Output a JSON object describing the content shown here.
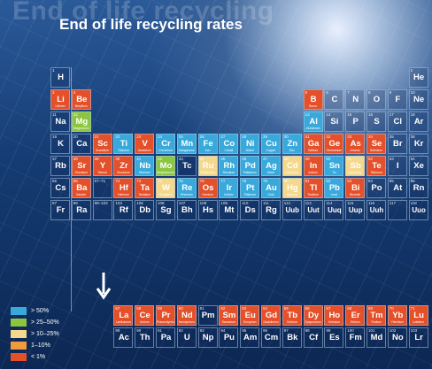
{
  "background_title": "End of life recycling",
  "title": "End of life recycling rates",
  "colors": {
    "none": "transparent",
    "below_1": "#e4502a",
    "1_10": "#f39a3c",
    "10_25": "#f4d88c",
    "25_50": "#8cc63f",
    "above_50": "#39a9dc"
  },
  "legend": [
    {
      "label": "> 50%",
      "cat": 5
    },
    {
      "label": "> 25–50%",
      "cat": 4
    },
    {
      "label": "> 10–25%",
      "cat": 3
    },
    {
      "label": "1–10%",
      "cat": 2
    },
    {
      "label": "< 1%",
      "cat": 1
    }
  ],
  "lanthanide_marker": "57–71",
  "actinide_marker": "89–103",
  "elements": [
    {
      "n": "1",
      "s": "H",
      "name": "",
      "r": 0,
      "c": 0,
      "cat": 0
    },
    {
      "n": "2",
      "s": "He",
      "name": "",
      "r": 0,
      "c": 17,
      "cat": 0
    },
    {
      "n": "3",
      "s": "Li",
      "name": "Lithium",
      "r": 1,
      "c": 0,
      "cat": 1
    },
    {
      "n": "4",
      "s": "Be",
      "name": "Beryllium",
      "r": 1,
      "c": 1,
      "cat": 1
    },
    {
      "n": "5",
      "s": "B",
      "name": "Boron",
      "r": 1,
      "c": 12,
      "cat": 1
    },
    {
      "n": "6",
      "s": "C",
      "name": "",
      "r": 1,
      "c": 13,
      "cat": 0
    },
    {
      "n": "7",
      "s": "N",
      "name": "",
      "r": 1,
      "c": 14,
      "cat": 0
    },
    {
      "n": "8",
      "s": "O",
      "name": "",
      "r": 1,
      "c": 15,
      "cat": 0
    },
    {
      "n": "9",
      "s": "F",
      "name": "",
      "r": 1,
      "c": 16,
      "cat": 0
    },
    {
      "n": "10",
      "s": "Ne",
      "name": "",
      "r": 1,
      "c": 17,
      "cat": 0
    },
    {
      "n": "11",
      "s": "Na",
      "name": "",
      "r": 2,
      "c": 0,
      "cat": 0
    },
    {
      "n": "12",
      "s": "Mg",
      "name": "Magnesium",
      "r": 2,
      "c": 1,
      "cat": 4
    },
    {
      "n": "13",
      "s": "Al",
      "name": "Aluminium",
      "r": 2,
      "c": 12,
      "cat": 5
    },
    {
      "n": "14",
      "s": "Si",
      "name": "",
      "r": 2,
      "c": 13,
      "cat": 0
    },
    {
      "n": "15",
      "s": "P",
      "name": "",
      "r": 2,
      "c": 14,
      "cat": 0
    },
    {
      "n": "16",
      "s": "S",
      "name": "",
      "r": 2,
      "c": 15,
      "cat": 0
    },
    {
      "n": "17",
      "s": "Cl",
      "name": "",
      "r": 2,
      "c": 16,
      "cat": 0
    },
    {
      "n": "18",
      "s": "Ar",
      "name": "",
      "r": 2,
      "c": 17,
      "cat": 0
    },
    {
      "n": "19",
      "s": "K",
      "name": "",
      "r": 3,
      "c": 0,
      "cat": 0
    },
    {
      "n": "20",
      "s": "Ca",
      "name": "",
      "r": 3,
      "c": 1,
      "cat": 0
    },
    {
      "n": "21",
      "s": "Sc",
      "name": "Scandium",
      "r": 3,
      "c": 2,
      "cat": 1
    },
    {
      "n": "22",
      "s": "Ti",
      "name": "Titanium",
      "r": 3,
      "c": 3,
      "cat": 5
    },
    {
      "n": "23",
      "s": "V",
      "name": "Vanadium",
      "r": 3,
      "c": 4,
      "cat": 1
    },
    {
      "n": "24",
      "s": "Cr",
      "name": "Chromium",
      "r": 3,
      "c": 5,
      "cat": 5
    },
    {
      "n": "25",
      "s": "Mn",
      "name": "Manganese",
      "r": 3,
      "c": 6,
      "cat": 5
    },
    {
      "n": "26",
      "s": "Fe",
      "name": "Iron",
      "r": 3,
      "c": 7,
      "cat": 5
    },
    {
      "n": "27",
      "s": "Co",
      "name": "Cobalt",
      "r": 3,
      "c": 8,
      "cat": 5
    },
    {
      "n": "28",
      "s": "Ni",
      "name": "Nickel",
      "r": 3,
      "c": 9,
      "cat": 5
    },
    {
      "n": "29",
      "s": "Cu",
      "name": "Copper",
      "r": 3,
      "c": 10,
      "cat": 5
    },
    {
      "n": "30",
      "s": "Zn",
      "name": "Zinc",
      "r": 3,
      "c": 11,
      "cat": 5
    },
    {
      "n": "31",
      "s": "Ga",
      "name": "Gallium",
      "r": 3,
      "c": 12,
      "cat": 1
    },
    {
      "n": "32",
      "s": "Ge",
      "name": "Germanium",
      "r": 3,
      "c": 13,
      "cat": 1
    },
    {
      "n": "33",
      "s": "As",
      "name": "Arsenic",
      "r": 3,
      "c": 14,
      "cat": 1
    },
    {
      "n": "34",
      "s": "Se",
      "name": "Selenium",
      "r": 3,
      "c": 15,
      "cat": 1
    },
    {
      "n": "35",
      "s": "Br",
      "name": "",
      "r": 3,
      "c": 16,
      "cat": 0
    },
    {
      "n": "36",
      "s": "Kr",
      "name": "",
      "r": 3,
      "c": 17,
      "cat": 0
    },
    {
      "n": "37",
      "s": "Rb",
      "name": "",
      "r": 4,
      "c": 0,
      "cat": 0
    },
    {
      "n": "38",
      "s": "Sr",
      "name": "Strontium",
      "r": 4,
      "c": 1,
      "cat": 1
    },
    {
      "n": "39",
      "s": "Y",
      "name": "Yttrium",
      "r": 4,
      "c": 2,
      "cat": 1
    },
    {
      "n": "40",
      "s": "Zr",
      "name": "Zirconium",
      "r": 4,
      "c": 3,
      "cat": 1
    },
    {
      "n": "41",
      "s": "Nb",
      "name": "Niobium",
      "r": 4,
      "c": 4,
      "cat": 5
    },
    {
      "n": "42",
      "s": "Mo",
      "name": "Molybdenum",
      "r": 4,
      "c": 5,
      "cat": 4
    },
    {
      "n": "43",
      "s": "Tc",
      "name": "",
      "r": 4,
      "c": 6,
      "cat": 0
    },
    {
      "n": "44",
      "s": "Ru",
      "name": "Ruthenium",
      "r": 4,
      "c": 7,
      "cat": 3
    },
    {
      "n": "45",
      "s": "Rh",
      "name": "Rhodium",
      "r": 4,
      "c": 8,
      "cat": 5
    },
    {
      "n": "46",
      "s": "Pd",
      "name": "Palladium",
      "r": 4,
      "c": 9,
      "cat": 5
    },
    {
      "n": "47",
      "s": "Ag",
      "name": "Silver",
      "r": 4,
      "c": 10,
      "cat": 5
    },
    {
      "n": "48",
      "s": "Cd",
      "name": "Cadmium",
      "r": 4,
      "c": 11,
      "cat": 3
    },
    {
      "n": "49",
      "s": "In",
      "name": "Indium",
      "r": 4,
      "c": 12,
      "cat": 1
    },
    {
      "n": "50",
      "s": "Sn",
      "name": "Tin",
      "r": 4,
      "c": 13,
      "cat": 5
    },
    {
      "n": "51",
      "s": "Sb",
      "name": "Antimony",
      "r": 4,
      "c": 14,
      "cat": 3
    },
    {
      "n": "52",
      "s": "Te",
      "name": "Tellurium",
      "r": 4,
      "c": 15,
      "cat": 1
    },
    {
      "n": "53",
      "s": "I",
      "name": "",
      "r": 4,
      "c": 16,
      "cat": 0
    },
    {
      "n": "54",
      "s": "Xe",
      "name": "",
      "r": 4,
      "c": 17,
      "cat": 0
    },
    {
      "n": "55",
      "s": "Cs",
      "name": "",
      "r": 5,
      "c": 0,
      "cat": 0
    },
    {
      "n": "56",
      "s": "Ba",
      "name": "Barium",
      "r": 5,
      "c": 1,
      "cat": 1
    },
    {
      "n": "72",
      "s": "Hf",
      "name": "Hafnium",
      "r": 5,
      "c": 3,
      "cat": 1
    },
    {
      "n": "73",
      "s": "Ta",
      "name": "Tantalum",
      "r": 5,
      "c": 4,
      "cat": 1
    },
    {
      "n": "74",
      "s": "W",
      "name": "Tungsten",
      "r": 5,
      "c": 5,
      "cat": 3
    },
    {
      "n": "75",
      "s": "Re",
      "name": "Rhenium",
      "r": 5,
      "c": 6,
      "cat": 5
    },
    {
      "n": "76",
      "s": "Os",
      "name": "Osmium",
      "r": 5,
      "c": 7,
      "cat": 1
    },
    {
      "n": "77",
      "s": "Ir",
      "name": "Iridium",
      "r": 5,
      "c": 8,
      "cat": 5
    },
    {
      "n": "78",
      "s": "Pt",
      "name": "Platinum",
      "r": 5,
      "c": 9,
      "cat": 5
    },
    {
      "n": "79",
      "s": "Au",
      "name": "Gold",
      "r": 5,
      "c": 10,
      "cat": 5
    },
    {
      "n": "80",
      "s": "Hg",
      "name": "Mercury",
      "r": 5,
      "c": 11,
      "cat": 3
    },
    {
      "n": "81",
      "s": "Tl",
      "name": "Thallium",
      "r": 5,
      "c": 12,
      "cat": 1
    },
    {
      "n": "82",
      "s": "Pb",
      "name": "Lead",
      "r": 5,
      "c": 13,
      "cat": 5
    },
    {
      "n": "83",
      "s": "Bi",
      "name": "Bismuth",
      "r": 5,
      "c": 14,
      "cat": 1
    },
    {
      "n": "84",
      "s": "Po",
      "name": "",
      "r": 5,
      "c": 15,
      "cat": 0
    },
    {
      "n": "85",
      "s": "At",
      "name": "",
      "r": 5,
      "c": 16,
      "cat": 0
    },
    {
      "n": "86",
      "s": "Rn",
      "name": "",
      "r": 5,
      "c": 17,
      "cat": 0
    },
    {
      "n": "87",
      "s": "Fr",
      "name": "",
      "r": 6,
      "c": 0,
      "cat": 0
    },
    {
      "n": "88",
      "s": "Ra",
      "name": "",
      "r": 6,
      "c": 1,
      "cat": 0
    },
    {
      "n": "104",
      "s": "Rf",
      "name": "",
      "r": 6,
      "c": 3,
      "cat": 0
    },
    {
      "n": "105",
      "s": "Db",
      "name": "",
      "r": 6,
      "c": 4,
      "cat": 0
    },
    {
      "n": "106",
      "s": "Sg",
      "name": "",
      "r": 6,
      "c": 5,
      "cat": 0
    },
    {
      "n": "107",
      "s": "Bh",
      "name": "",
      "r": 6,
      "c": 6,
      "cat": 0
    },
    {
      "n": "108",
      "s": "Hs",
      "name": "",
      "r": 6,
      "c": 7,
      "cat": 0
    },
    {
      "n": "109",
      "s": "Mt",
      "name": "",
      "r": 6,
      "c": 8,
      "cat": 0
    },
    {
      "n": "110",
      "s": "Ds",
      "name": "",
      "r": 6,
      "c": 9,
      "cat": 0
    },
    {
      "n": "111",
      "s": "Rg",
      "name": "",
      "r": 6,
      "c": 10,
      "cat": 0
    },
    {
      "n": "112",
      "s": "Uub",
      "name": "",
      "r": 6,
      "c": 11,
      "cat": 0
    },
    {
      "n": "113",
      "s": "Uut",
      "name": "",
      "r": 6,
      "c": 12,
      "cat": 0
    },
    {
      "n": "114",
      "s": "Uuq",
      "name": "",
      "r": 6,
      "c": 13,
      "cat": 0
    },
    {
      "n": "115",
      "s": "Uup",
      "name": "",
      "r": 6,
      "c": 14,
      "cat": 0
    },
    {
      "n": "116",
      "s": "Uuh",
      "name": "",
      "r": 6,
      "c": 15,
      "cat": 0
    },
    {
      "n": "117",
      "s": "",
      "name": "",
      "r": 6,
      "c": 16,
      "cat": 0
    },
    {
      "n": "118",
      "s": "Uuo",
      "name": "",
      "r": 6,
      "c": 17,
      "cat": 0
    },
    {
      "n": "57",
      "s": "La",
      "name": "Lanthanum",
      "r": 8,
      "c": 3,
      "cat": 1
    },
    {
      "n": "58",
      "s": "Ce",
      "name": "Cerium",
      "r": 8,
      "c": 4,
      "cat": 1
    },
    {
      "n": "59",
      "s": "Pr",
      "name": "Praseodymium",
      "r": 8,
      "c": 5,
      "cat": 1
    },
    {
      "n": "60",
      "s": "Nd",
      "name": "Neodymium",
      "r": 8,
      "c": 6,
      "cat": 1
    },
    {
      "n": "61",
      "s": "Pm",
      "name": "",
      "r": 8,
      "c": 7,
      "cat": 0
    },
    {
      "n": "62",
      "s": "Sm",
      "name": "Samarium",
      "r": 8,
      "c": 8,
      "cat": 1
    },
    {
      "n": "63",
      "s": "Eu",
      "name": "Europium",
      "r": 8,
      "c": 9,
      "cat": 1
    },
    {
      "n": "64",
      "s": "Gd",
      "name": "Gadolinium",
      "r": 8,
      "c": 10,
      "cat": 1
    },
    {
      "n": "65",
      "s": "Tb",
      "name": "Terbium",
      "r": 8,
      "c": 11,
      "cat": 1
    },
    {
      "n": "66",
      "s": "Dy",
      "name": "Dysprosium",
      "r": 8,
      "c": 12,
      "cat": 1
    },
    {
      "n": "67",
      "s": "Ho",
      "name": "Holmium",
      "r": 8,
      "c": 13,
      "cat": 1
    },
    {
      "n": "68",
      "s": "Er",
      "name": "Erbium",
      "r": 8,
      "c": 14,
      "cat": 1
    },
    {
      "n": "69",
      "s": "Tm",
      "name": "Thulium",
      "r": 8,
      "c": 15,
      "cat": 1
    },
    {
      "n": "70",
      "s": "Yb",
      "name": "Ytterbium",
      "r": 8,
      "c": 16,
      "cat": 1
    },
    {
      "n": "71",
      "s": "Lu",
      "name": "Lutetium",
      "r": 8,
      "c": 17,
      "cat": 1
    },
    {
      "n": "89",
      "s": "Ac",
      "name": "",
      "r": 9,
      "c": 3,
      "cat": 0
    },
    {
      "n": "90",
      "s": "Th",
      "name": "",
      "r": 9,
      "c": 4,
      "cat": 0
    },
    {
      "n": "91",
      "s": "Pa",
      "name": "",
      "r": 9,
      "c": 5,
      "cat": 0
    },
    {
      "n": "92",
      "s": "U",
      "name": "",
      "r": 9,
      "c": 6,
      "cat": 0
    },
    {
      "n": "93",
      "s": "Np",
      "name": "",
      "r": 9,
      "c": 7,
      "cat": 0
    },
    {
      "n": "94",
      "s": "Pu",
      "name": "",
      "r": 9,
      "c": 8,
      "cat": 0
    },
    {
      "n": "95",
      "s": "Am",
      "name": "",
      "r": 9,
      "c": 9,
      "cat": 0
    },
    {
      "n": "96",
      "s": "Cm",
      "name": "",
      "r": 9,
      "c": 10,
      "cat": 0
    },
    {
      "n": "97",
      "s": "Bk",
      "name": "",
      "r": 9,
      "c": 11,
      "cat": 0
    },
    {
      "n": "98",
      "s": "Cf",
      "name": "",
      "r": 9,
      "c": 12,
      "cat": 0
    },
    {
      "n": "99",
      "s": "Es",
      "name": "",
      "r": 9,
      "c": 13,
      "cat": 0
    },
    {
      "n": "100",
      "s": "Fm",
      "name": "",
      "r": 9,
      "c": 14,
      "cat": 0
    },
    {
      "n": "101",
      "s": "Md",
      "name": "",
      "r": 9,
      "c": 15,
      "cat": 0
    },
    {
      "n": "102",
      "s": "No",
      "name": "",
      "r": 9,
      "c": 16,
      "cat": 0
    },
    {
      "n": "103",
      "s": "Lr",
      "name": "",
      "r": 9,
      "c": 17,
      "cat": 0
    }
  ]
}
